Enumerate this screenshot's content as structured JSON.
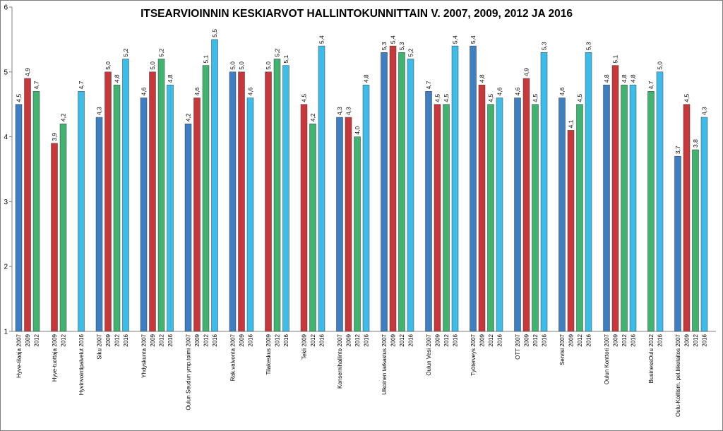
{
  "chart_data": {
    "type": "bar",
    "title": "ITSEARVIOINNIN KESKIARVOT HALLINTOKUNNITTAIN V. 2007, 2009, 2012 JA 2016",
    "xlabel": "",
    "ylabel": "",
    "ylim": [
      1,
      6
    ],
    "yticks": [
      "1",
      "2",
      "3",
      "4",
      "5",
      "6"
    ],
    "grid": false,
    "legend": "none",
    "colors": {
      "2007": "#3d7fc2",
      "2009": "#c8383a",
      "2012": "#3fb36f",
      "2016": "#3cbde9"
    },
    "groups": [
      {
        "bars": [
          {
            "year": "2007",
            "label": "Hyve-tilaaja 2007",
            "value": 4.5,
            "value_label": "4,5"
          },
          {
            "year": "2009",
            "label": "2009",
            "value": 4.9,
            "value_label": "4,9"
          },
          {
            "year": "2012",
            "label": "2012",
            "value": 4.7,
            "value_label": "4,7"
          }
        ]
      },
      {
        "bars": [
          {
            "year": "2009",
            "label": "Hyve-tuottaja 2009",
            "value": 3.9,
            "value_label": "3,9"
          },
          {
            "year": "2012",
            "label": "2012",
            "value": 4.2,
            "value_label": "4,2"
          }
        ]
      },
      {
        "bars": [
          {
            "year": "2016",
            "label": "Hyvinvointipalvelut 2016",
            "value": 4.7,
            "value_label": "4,7"
          }
        ]
      },
      {
        "bars": [
          {
            "year": "2007",
            "label": "Siku 2007",
            "value": 4.3,
            "value_label": "4,3"
          },
          {
            "year": "2009",
            "label": "2009",
            "value": 5.0,
            "value_label": "5,0"
          },
          {
            "year": "2012",
            "label": "2012",
            "value": 4.8,
            "value_label": "4,8"
          },
          {
            "year": "2016",
            "label": "2016",
            "value": 5.2,
            "value_label": "5,2"
          }
        ]
      },
      {
        "bars": [
          {
            "year": "2007",
            "label": "Yhdyskunta 2007",
            "value": 4.6,
            "value_label": "4,6"
          },
          {
            "year": "2009",
            "label": "2009",
            "value": 5.0,
            "value_label": "5,0"
          },
          {
            "year": "2012",
            "label": "2012",
            "value": 5.2,
            "value_label": "5,2"
          },
          {
            "year": "2016",
            "label": "2016",
            "value": 4.8,
            "value_label": "4,8"
          }
        ]
      },
      {
        "bars": [
          {
            "year": "2007",
            "label": "Oulun Seudun ymp.toimi 2007",
            "value": 4.2,
            "value_label": "4,2"
          },
          {
            "year": "2009",
            "label": "2009",
            "value": 4.6,
            "value_label": "4,6"
          },
          {
            "year": "2012",
            "label": "2012",
            "value": 5.1,
            "value_label": "5,1"
          },
          {
            "year": "2016",
            "label": "2016",
            "value": 5.5,
            "value_label": "5,5"
          }
        ]
      },
      {
        "bars": [
          {
            "year": "2007",
            "label": "Rak.valvonta 2007",
            "value": 5.0,
            "value_label": "5,0"
          },
          {
            "year": "2009",
            "label": "2009",
            "value": 5.0,
            "value_label": "5,0"
          },
          {
            "year": "2016",
            "label": "2016",
            "value": 4.6,
            "value_label": "4,6"
          }
        ]
      },
      {
        "bars": [
          {
            "year": "2009",
            "label": "Tilakeskus 2009",
            "value": 5.0,
            "value_label": "5,0"
          },
          {
            "year": "2012",
            "label": "2012",
            "value": 5.2,
            "value_label": "5,2"
          },
          {
            "year": "2016",
            "label": "2016",
            "value": 5.1,
            "value_label": "5,1"
          }
        ]
      },
      {
        "bars": [
          {
            "year": "2009",
            "label": "Tekli 2009",
            "value": 4.5,
            "value_label": "4,5"
          },
          {
            "year": "2012",
            "label": "2012",
            "value": 4.2,
            "value_label": "4,2"
          },
          {
            "year": "2016",
            "label": "2016",
            "value": 5.4,
            "value_label": "5,4"
          }
        ]
      },
      {
        "bars": [
          {
            "year": "2007",
            "label": "Konsernihallinto 2007",
            "value": 4.3,
            "value_label": "4,3"
          },
          {
            "year": "2009",
            "label": "2009",
            "value": 4.3,
            "value_label": "4,3"
          },
          {
            "year": "2012",
            "label": "2012",
            "value": 4.0,
            "value_label": "4,0"
          },
          {
            "year": "2016",
            "label": "2016",
            "value": 4.8,
            "value_label": "4,8"
          }
        ]
      },
      {
        "bars": [
          {
            "year": "2007",
            "label": "Ulkoinen tarkastus 2007",
            "value": 5.3,
            "value_label": "5,3"
          },
          {
            "year": "2009",
            "label": "2009",
            "value": 5.4,
            "value_label": "5,4"
          },
          {
            "year": "2012",
            "label": "2012",
            "value": 5.3,
            "value_label": "5,3"
          },
          {
            "year": "2016",
            "label": "2016",
            "value": 5.2,
            "value_label": "5,2"
          }
        ]
      },
      {
        "bars": [
          {
            "year": "2007",
            "label": "Oulun Vesi 2007",
            "value": 4.7,
            "value_label": "4,7"
          },
          {
            "year": "2009",
            "label": "2009",
            "value": 4.5,
            "value_label": "4,5"
          },
          {
            "year": "2012",
            "label": "2012",
            "value": 4.5,
            "value_label": "4,5"
          },
          {
            "year": "2016",
            "label": "2016",
            "value": 5.4,
            "value_label": "5,4"
          }
        ]
      },
      {
        "bars": [
          {
            "year": "2007",
            "label": "Työterveys 2007",
            "value": 5.4,
            "value_label": "5,4"
          },
          {
            "year": "2009",
            "label": "2009",
            "value": 4.8,
            "value_label": "4,8"
          },
          {
            "year": "2012",
            "label": "2012",
            "value": 4.5,
            "value_label": "4,5"
          },
          {
            "year": "2016",
            "label": "2016",
            "value": 4.6,
            "value_label": "4,6"
          }
        ]
      },
      {
        "bars": [
          {
            "year": "2007",
            "label": "OTT 2007",
            "value": 4.6,
            "value_label": "4,6"
          },
          {
            "year": "2009",
            "label": "2009",
            "value": 4.9,
            "value_label": "4,9"
          },
          {
            "year": "2012",
            "label": "2012",
            "value": 4.5,
            "value_label": "4,5"
          },
          {
            "year": "2016",
            "label": "2016",
            "value": 5.3,
            "value_label": "5,3"
          }
        ]
      },
      {
        "bars": [
          {
            "year": "2007",
            "label": "Servisi 2007",
            "value": 4.6,
            "value_label": "4,6"
          },
          {
            "year": "2009",
            "label": "2009",
            "value": 4.1,
            "value_label": "4,1"
          },
          {
            "year": "2012",
            "label": "2012",
            "value": 4.5,
            "value_label": "4,5"
          },
          {
            "year": "2016",
            "label": "2016",
            "value": 5.3,
            "value_label": "5,3"
          }
        ]
      },
      {
        "bars": [
          {
            "year": "2007",
            "label": "Oulun Konttori 2007",
            "value": 4.8,
            "value_label": "4,8"
          },
          {
            "year": "2009",
            "label": "2009",
            "value": 5.1,
            "value_label": "5,1"
          },
          {
            "year": "2012",
            "label": "2012",
            "value": 4.8,
            "value_label": "4,8"
          },
          {
            "year": "2016",
            "label": "2016",
            "value": 4.8,
            "value_label": "4,8"
          }
        ]
      },
      {
        "bars": [
          {
            "year": "2012",
            "label": "BusinessOulu 2012",
            "value": 4.7,
            "value_label": "4,7"
          },
          {
            "year": "2016",
            "label": "2016",
            "value": 5.0,
            "value_label": "5,0"
          }
        ]
      },
      {
        "bars": [
          {
            "year": "2007",
            "label": "Oulu-Koillism. pel.liikelaitos 2007",
            "value": 3.7,
            "value_label": "3,7"
          },
          {
            "year": "2009",
            "label": "2009",
            "value": 4.5,
            "value_label": "4,5"
          },
          {
            "year": "2012",
            "label": "2012",
            "value": 3.8,
            "value_label": "3,8"
          },
          {
            "year": "2016",
            "label": "2016",
            "value": 4.3,
            "value_label": "4,3"
          }
        ]
      }
    ]
  }
}
